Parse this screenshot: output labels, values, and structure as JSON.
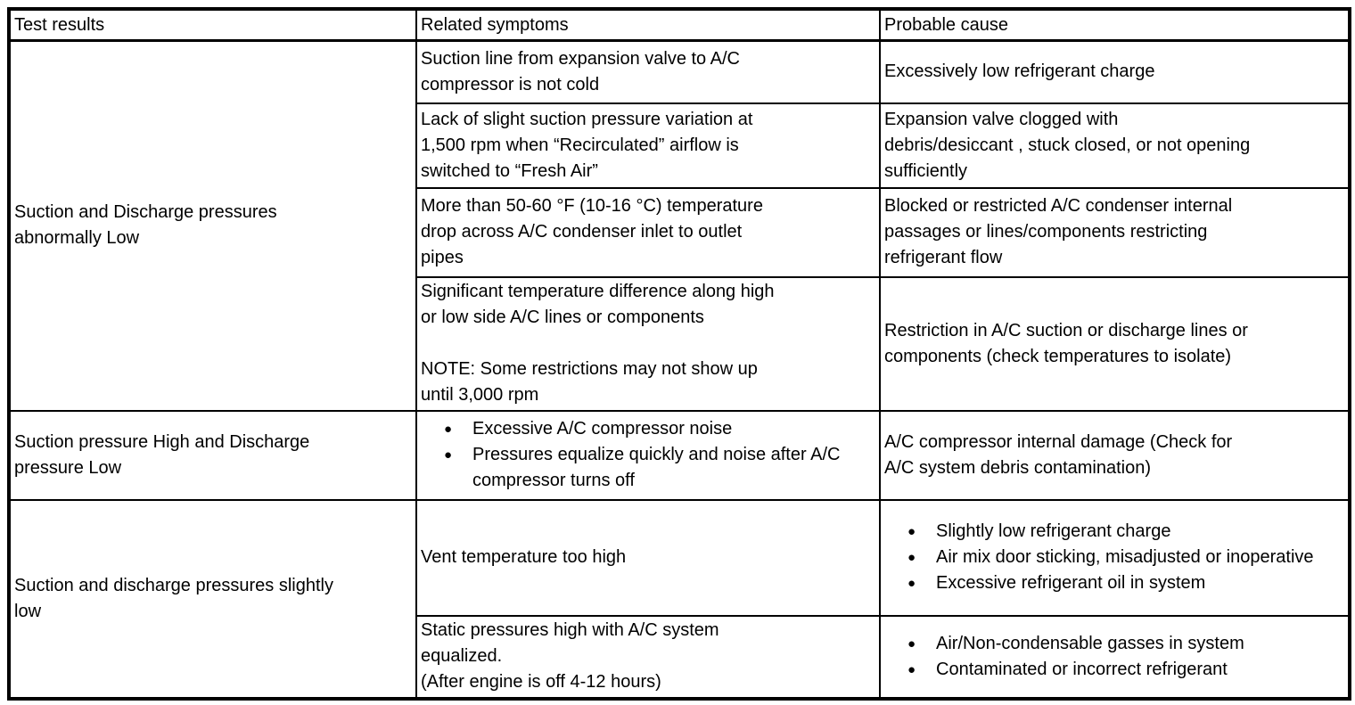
{
  "colors": {
    "background": "#ffffff",
    "border": "#000000",
    "text": "#000000"
  },
  "table": {
    "headers": [
      "Test results",
      "Related symptoms",
      "Probable cause"
    ],
    "rows": [
      {
        "test": {
          "rowspan": 4,
          "lines": [
            "Suction and Discharge pressures",
            "abnormally Low"
          ]
        },
        "symptom": {
          "kind": "text",
          "lines": [
            "Suction line from expansion valve to A/C",
            "compressor is not cold"
          ]
        },
        "cause": {
          "kind": "text",
          "lines": [
            "Excessively low refrigerant charge"
          ]
        }
      },
      {
        "symptom": {
          "kind": "text",
          "lines": [
            "Lack of slight suction pressure variation at",
            "1,500 rpm when “Recirculated” airflow is",
            "switched to “Fresh Air”"
          ]
        },
        "cause": {
          "kind": "text",
          "lines": [
            "Expansion valve clogged with",
            "debris/desiccant , stuck closed, or not opening",
            "sufficiently"
          ]
        }
      },
      {
        "symptom": {
          "kind": "text",
          "lines": [
            "More than 50-60 °F (10-16 °C) temperature",
            "drop across A/C condenser inlet to outlet",
            "pipes"
          ]
        },
        "cause": {
          "kind": "text",
          "lines": [
            "Blocked or restricted A/C condenser internal",
            "passages or lines/components restricting",
            "refrigerant flow"
          ]
        }
      },
      {
        "symptom": {
          "kind": "text",
          "lines": [
            "Significant temperature difference along high",
            "or low side A/C lines or components",
            "",
            "NOTE: Some restrictions may not show up",
            "until 3,000 rpm"
          ]
        },
        "cause": {
          "kind": "text",
          "lines": [
            "Restriction in A/C suction or discharge lines or",
            "components (check temperatures to isolate)"
          ]
        }
      },
      {
        "test": {
          "rowspan": 1,
          "lines": [
            "Suction pressure High and Discharge",
            "pressure Low"
          ]
        },
        "symptom": {
          "kind": "bullets",
          "lines": [
            "Excessive A/C compressor noise",
            "Pressures equalize quickly and noise after A/C compressor turns off"
          ]
        },
        "cause": {
          "kind": "text",
          "lines": [
            "A/C compressor internal damage (Check for",
            "A/C system debris contamination)"
          ]
        }
      },
      {
        "test": {
          "rowspan": 2,
          "lines": [
            "Suction and discharge pressures slightly",
            "low"
          ]
        },
        "symptom": {
          "kind": "text",
          "lines": [
            "Vent temperature too high"
          ]
        },
        "cause": {
          "kind": "bullets",
          "lines": [
            "Slightly low refrigerant charge",
            "Air mix door sticking, misadjusted or inoperative",
            "Excessive refrigerant oil in system"
          ]
        }
      },
      {
        "symptom": {
          "kind": "text",
          "lines": [
            "Static pressures high with A/C system",
            "equalized.",
            "(After engine is off 4-12 hours)"
          ]
        },
        "cause": {
          "kind": "bullets",
          "lines": [
            "Air/Non-condensable gasses in system",
            "Contaminated or incorrect refrigerant"
          ]
        }
      }
    ]
  }
}
